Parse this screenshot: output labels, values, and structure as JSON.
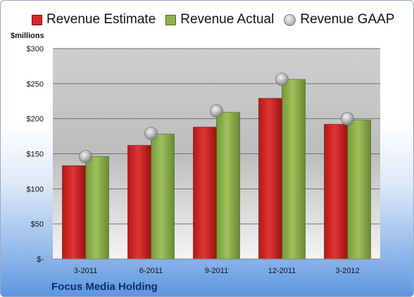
{
  "legend": {
    "estimate": "Revenue Estimate",
    "actual": "Revenue Actual",
    "gaap": "Revenue GAAP"
  },
  "units_label": "$millions",
  "company": "Focus Media Holding",
  "colors": {
    "estimate": "#d42a2a",
    "actual": "#8fb24f",
    "gaap": "#b5b5b5"
  },
  "chart_data": {
    "type": "bar",
    "categories": [
      "3-2011",
      "6-2011",
      "9-2011",
      "12-2011",
      "3-2012"
    ],
    "series": [
      {
        "name": "Revenue Estimate",
        "values": [
          133,
          162,
          188,
          229,
          192
        ]
      },
      {
        "name": "Revenue Actual",
        "values": [
          146,
          178,
          209,
          256,
          198
        ]
      },
      {
        "name": "Revenue GAAP",
        "type": "scatter",
        "values": [
          146,
          179,
          211,
          256,
          200
        ]
      }
    ],
    "y_ticks": [
      {
        "value": 0,
        "label": "$-"
      },
      {
        "value": 50,
        "label": "$50"
      },
      {
        "value": 100,
        "label": "$100"
      },
      {
        "value": 150,
        "label": "$150"
      },
      {
        "value": 200,
        "label": "$200"
      },
      {
        "value": 250,
        "label": "$250"
      },
      {
        "value": 300,
        "label": "$300"
      }
    ],
    "ylim": [
      0,
      300
    ],
    "grid": true,
    "legend_position": "top"
  }
}
